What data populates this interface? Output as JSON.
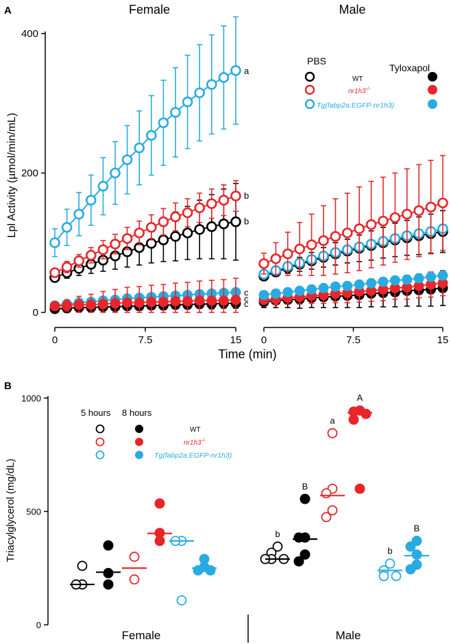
{
  "colors": {
    "wt": "#000000",
    "nr1h3": "#e8262a",
    "tg": "#29abe2"
  },
  "panel_a": {
    "letter": "A",
    "female_title": "Female",
    "male_title": "Male",
    "legend": {
      "pbs_label": "PBS",
      "tylox_label": "Tyloxapol",
      "wt": "WT",
      "nr1h3": "nr1h3",
      "nr1h3_sup": "-/-",
      "tg": "Tg(fabp2a:EGFP-nr1h3)"
    }
  },
  "panel_b": {
    "letter": "B",
    "legend": {
      "h5": "5 hours",
      "h8": "8 hours",
      "wt": "WT",
      "nr1h3": "nr1h3",
      "nr1h3_sup": "-/-",
      "tg": "Tg(fabp2a:EGFP-nr1h3)"
    },
    "group_female": "Female",
    "group_male": "Male"
  },
  "chart_data": [
    {
      "id": "A-female",
      "type": "line",
      "title": "Female",
      "xlabel": "Time (min)",
      "ylabel": "Lpl Activity  (µmol/min/mL)",
      "xlim": [
        0,
        15
      ],
      "ylim": [
        0,
        420
      ],
      "xticks": [
        "0",
        "7.5",
        "15"
      ],
      "yticks": [
        "0",
        "200",
        "400"
      ],
      "x": [
        0,
        1,
        2,
        3,
        4,
        5,
        6,
        7,
        8,
        9,
        10,
        11,
        12,
        13,
        14,
        15
      ],
      "series": [
        {
          "name": "Tg PBS",
          "color": "tg",
          "fill": "open",
          "values": [
            100,
            122,
            141,
            161,
            181,
            200,
            219,
            236,
            254,
            272,
            287,
            302,
            315,
            327,
            337,
            347
          ],
          "err": [
            20,
            26,
            31,
            36,
            41,
            45,
            49,
            53,
            57,
            61,
            64,
            67,
            69,
            71,
            74,
            77
          ],
          "label": "a"
        },
        {
          "name": "nr1h3-/- PBS",
          "color": "nr1h3",
          "fill": "open",
          "values": [
            57,
            65,
            74,
            82,
            90,
            98,
            106,
            114,
            122,
            130,
            137,
            143,
            150,
            156,
            161,
            167
          ],
          "err": [
            6,
            8,
            9,
            11,
            13,
            14,
            16,
            17,
            18,
            19,
            20,
            20,
            21,
            21,
            22,
            22
          ],
          "label": "b"
        },
        {
          "name": "WT PBS",
          "color": "wt",
          "fill": "open",
          "values": [
            50,
            57,
            63,
            69,
            75,
            81,
            87,
            93,
            99,
            104,
            109,
            114,
            119,
            123,
            127,
            130
          ],
          "err": [
            5,
            8,
            10,
            13,
            16,
            19,
            22,
            25,
            28,
            31,
            35,
            38,
            42,
            46,
            50,
            55
          ],
          "label": "b"
        },
        {
          "name": "nr1h3-/- Tylox",
          "color": "nr1h3",
          "fill": "solid",
          "values": [
            9,
            10,
            11,
            11,
            12,
            13,
            14,
            14,
            15,
            15,
            16,
            16,
            17,
            17,
            17,
            18
          ],
          "err": [
            4,
            8,
            12,
            15,
            18,
            20,
            22,
            23,
            24,
            25,
            26,
            27,
            28,
            29,
            30,
            31
          ],
          "label": "c"
        },
        {
          "name": "Tg Tylox",
          "color": "tg",
          "fill": "solid",
          "values": [
            10,
            12,
            14,
            15,
            17,
            18,
            20,
            21,
            22,
            23,
            24,
            25,
            26,
            27,
            28,
            29
          ],
          "err": [
            2,
            2,
            3,
            3,
            3,
            3,
            3,
            3,
            3,
            3,
            3,
            3,
            3,
            3,
            3,
            3
          ],
          "label": "c"
        },
        {
          "name": "WT Tylox",
          "color": "wt",
          "fill": "solid",
          "values": [
            5,
            6,
            7,
            7,
            8,
            8,
            9,
            9,
            10,
            10,
            11,
            11,
            12,
            12,
            13,
            13
          ],
          "err": [
            3,
            3,
            4,
            4,
            4,
            5,
            5,
            5,
            5,
            6,
            6,
            6,
            6,
            7,
            7,
            7
          ],
          "label": "c"
        }
      ]
    },
    {
      "id": "A-male",
      "type": "line",
      "title": "Male",
      "xlabel": "Time (min)",
      "xlim": [
        0,
        15
      ],
      "ylim": [
        0,
        420
      ],
      "xticks": [
        "0",
        "7.5",
        "15"
      ],
      "x": [
        0,
        1,
        2,
        3,
        4,
        5,
        6,
        7,
        8,
        9,
        10,
        11,
        12,
        13,
        14,
        15
      ],
      "series": [
        {
          "name": "nr1h3-/- PBS",
          "color": "nr1h3",
          "fill": "open",
          "values": [
            70,
            77,
            84,
            91,
            97,
            103,
            109,
            114,
            120,
            126,
            131,
            136,
            141,
            146,
            151,
            157
          ],
          "err": [
            15,
            23,
            31,
            38,
            44,
            50,
            54,
            57,
            60,
            62,
            63,
            64,
            65,
            66,
            67,
            68
          ]
        },
        {
          "name": "Tg PBS",
          "color": "tg",
          "fill": "open",
          "values": [
            55,
            60,
            66,
            71,
            76,
            81,
            86,
            90,
            94,
            98,
            102,
            106,
            110,
            113,
            116,
            120
          ],
          "err": [
            3,
            3,
            3,
            3,
            4,
            4,
            4,
            4,
            4,
            4,
            4,
            4,
            4,
            4,
            4,
            4
          ]
        },
        {
          "name": "WT PBS",
          "color": "wt",
          "fill": "open",
          "values": [
            52,
            58,
            64,
            69,
            74,
            79,
            84,
            88,
            92,
            96,
            100,
            104,
            107,
            110,
            113,
            116
          ],
          "err": [
            4,
            6,
            8,
            10,
            12,
            14,
            16,
            17,
            19,
            21,
            22,
            24,
            25,
            27,
            28,
            30
          ]
        },
        {
          "name": "Tg Tylox",
          "color": "tg",
          "fill": "solid",
          "values": [
            25,
            27,
            29,
            31,
            33,
            35,
            37,
            38,
            40,
            42,
            44,
            46,
            47,
            49,
            51,
            53
          ],
          "err": [
            3,
            3,
            3,
            3,
            3,
            3,
            3,
            3,
            3,
            3,
            3,
            3,
            3,
            3,
            3,
            3
          ]
        },
        {
          "name": "nr1h3-/- Tylox",
          "color": "nr1h3",
          "fill": "solid",
          "values": [
            18,
            19,
            21,
            22,
            24,
            25,
            27,
            28,
            30,
            31,
            33,
            35,
            36,
            38,
            40,
            42
          ],
          "err": [
            6,
            8,
            9,
            10,
            11,
            12,
            13,
            14,
            15,
            15,
            16,
            16,
            17,
            17,
            18,
            18
          ]
        },
        {
          "name": "WT Tylox",
          "color": "wt",
          "fill": "solid",
          "values": [
            15,
            17,
            18,
            19,
            21,
            22,
            23,
            24,
            25,
            27,
            28,
            29,
            31,
            32,
            33,
            35
          ],
          "err": [
            8,
            10,
            11,
            13,
            14,
            15,
            16,
            17,
            18,
            19,
            20,
            21,
            22,
            23,
            24,
            25
          ]
        }
      ]
    },
    {
      "id": "B",
      "type": "scatter",
      "ylabel": "Triacylglycerol (mg/dL)",
      "ylim": [
        0,
        1000
      ],
      "yticks": [
        "0",
        "500",
        "1000"
      ],
      "groups": [
        {
          "sex": "Female",
          "genotype": "WT",
          "time": "5 hours",
          "color": "wt",
          "fill": "open",
          "points": [
            260,
            178,
            178
          ],
          "mean": 178,
          "letter": ""
        },
        {
          "sex": "Female",
          "genotype": "WT",
          "time": "8 hours",
          "color": "wt",
          "fill": "solid",
          "points": [
            350,
            228,
            178
          ],
          "mean": 232,
          "letter": ""
        },
        {
          "sex": "Female",
          "genotype": "nr1h3-/-",
          "time": "5 hours",
          "color": "nr1h3",
          "fill": "open",
          "points": [
            300,
            200
          ],
          "mean": 250,
          "letter": ""
        },
        {
          "sex": "Female",
          "genotype": "nr1h3-/-",
          "time": "8 hours",
          "color": "nr1h3",
          "fill": "solid",
          "points": [
            535,
            405,
            370
          ],
          "mean": 403,
          "letter": ""
        },
        {
          "sex": "Female",
          "genotype": "Tg",
          "time": "5 hours",
          "color": "tg",
          "fill": "open",
          "points": [
            370,
            370,
            108
          ],
          "mean": 370,
          "letter": ""
        },
        {
          "sex": "Female",
          "genotype": "Tg",
          "time": "8 hours",
          "color": "tg",
          "fill": "solid",
          "points": [
            290,
            255,
            240,
            240
          ],
          "mean": 250,
          "letter": ""
        },
        {
          "sex": "Male",
          "genotype": "WT",
          "time": "5 hours",
          "color": "wt",
          "fill": "open",
          "points": [
            345,
            318,
            290,
            290,
            290
          ],
          "mean": 290,
          "letter": "b"
        },
        {
          "sex": "Male",
          "genotype": "WT",
          "time": "8 hours",
          "color": "wt",
          "fill": "solid",
          "points": [
            555,
            385,
            385,
            310,
            280
          ],
          "mean": 378,
          "letter": "B"
        },
        {
          "sex": "Male",
          "genotype": "nr1h3-/-",
          "time": "5 hours",
          "color": "nr1h3",
          "fill": "open",
          "points": [
            845,
            600,
            580,
            505,
            475
          ],
          "mean": 570,
          "letter": "a"
        },
        {
          "sex": "Male",
          "genotype": "nr1h3-/-",
          "time": "8 hours",
          "color": "nr1h3",
          "fill": "solid",
          "points": [
            945,
            940,
            930,
            905,
            600
          ],
          "mean": 935,
          "letter": "A"
        },
        {
          "sex": "Male",
          "genotype": "Tg",
          "time": "5 hours",
          "color": "tg",
          "fill": "open",
          "points": [
            270,
            240,
            215,
            215
          ],
          "mean": 240,
          "letter": "b"
        },
        {
          "sex": "Male",
          "genotype": "Tg",
          "time": "8 hours",
          "color": "tg",
          "fill": "solid",
          "points": [
            370,
            345,
            310,
            265,
            245
          ],
          "mean": 305,
          "letter": "B"
        }
      ]
    }
  ]
}
